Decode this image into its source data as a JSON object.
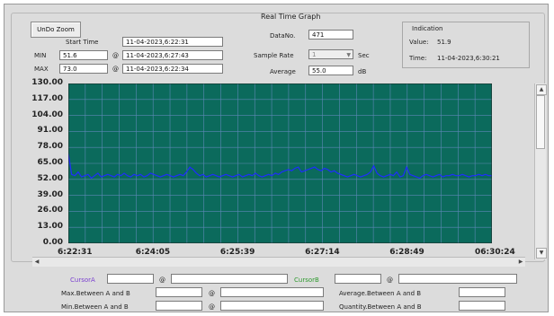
{
  "header": {
    "title": "Real Time Graph"
  },
  "toolbar": {
    "undo_zoom": "UnDo Zoom"
  },
  "start_time": {
    "label": "Start Time",
    "value": "11-04-2023,6:22:31"
  },
  "min": {
    "label": "MIN",
    "value": "51.6",
    "at": "@",
    "time": "11-04-2023,6:27:43"
  },
  "max": {
    "label": "MAX",
    "value": "73.0",
    "at": "@",
    "time": "11-04-2023,6:22:34"
  },
  "data_no": {
    "label": "DataNo.",
    "value": "471"
  },
  "sample_rate": {
    "label": "Sample Rate",
    "value": "1",
    "unit": "Sec"
  },
  "average": {
    "label": "Average",
    "value": "55.0",
    "unit": "dB"
  },
  "indication": {
    "title": "Indication",
    "value_label": "Value:",
    "value": "51.9",
    "time_label": "Time:",
    "time": "11-04-2023,6:30:21"
  },
  "cursor": {
    "a_label": "CursorA",
    "b_label": "CursorB",
    "at": "@"
  },
  "stats": {
    "max_between": "Max.Between A and B",
    "min_between": "Min.Between A and B",
    "avg_between": "Average.Between A and B",
    "qty_between": "Quantity.Between A and B"
  },
  "colors": {
    "plot_bg": "#0b6a5c",
    "grid": "#5e88b6",
    "line": "#1f2cff",
    "cursor_a": "#7a3fd0",
    "cursor_b": "#2f9a2f"
  },
  "chart_data": {
    "type": "line",
    "ylim": [
      0,
      130
    ],
    "y_ticks": [
      "130.00",
      "117.00",
      "104.00",
      "91.00",
      "78.00",
      "65.00",
      "52.00",
      "39.00",
      "26.00",
      "13.00",
      "0.00"
    ],
    "x_ticks": [
      "6:22:31",
      "6:24:05",
      "6:25:39",
      "6:27:14",
      "6:28:49",
      "06:30:24"
    ],
    "series": [
      {
        "values": [
          73,
          56,
          55,
          58,
          54,
          55,
          56,
          53,
          55,
          57,
          54,
          55,
          56,
          55,
          54,
          56,
          55,
          57,
          55,
          54,
          56,
          55,
          56,
          54,
          55,
          57,
          56,
          55,
          54,
          55,
          56,
          55,
          54,
          55,
          56,
          55,
          58,
          62,
          60,
          57,
          55,
          56,
          54,
          55,
          56,
          55,
          54,
          55,
          56,
          55,
          54,
          55,
          56,
          54,
          55,
          56,
          55,
          57,
          55,
          54,
          55,
          56,
          55,
          57,
          56,
          58,
          59,
          60,
          59,
          61,
          62,
          58,
          59,
          60,
          61,
          62,
          60,
          59,
          61,
          60,
          58,
          59,
          57,
          56,
          55,
          54,
          55,
          56,
          55,
          54,
          55,
          56,
          58,
          63,
          57,
          55,
          54,
          55,
          56,
          55,
          58,
          54,
          55,
          62,
          56,
          55,
          54,
          53,
          55,
          56,
          55,
          54,
          55,
          56,
          54,
          55,
          55,
          56,
          55,
          55,
          56,
          55,
          54,
          55,
          55,
          56,
          55,
          56,
          55,
          55
        ]
      }
    ]
  }
}
